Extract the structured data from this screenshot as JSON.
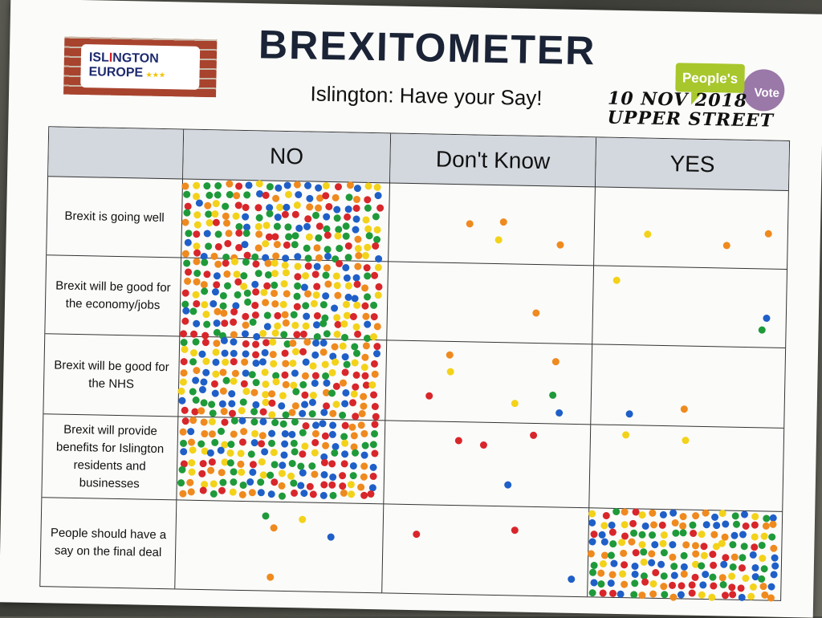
{
  "logo": {
    "line1_a": "ISL",
    "line1_b": "I",
    "line1_c": "NGTON",
    "line2": "EUROPE"
  },
  "title": "BREXITOMETER",
  "subtitle": "Islington: Have your Say!",
  "peoples_vote": {
    "word1": "People's",
    "word2": "Vote"
  },
  "handwriting": {
    "line1": "10 NOV 2018",
    "line2": "UPPER STREET"
  },
  "columns": [
    "NO",
    "Don't Know",
    "YES"
  ],
  "rows": [
    "Brexit is going well",
    "Brexit will be good for the economy/jobs",
    "Brexit will be good for the NHS",
    "Brexit will provide benefits for Islington residents and businesses",
    "People should have a say on the final deal"
  ],
  "dot_colors": [
    "#d8262b",
    "#ef8a1f",
    "#f3d21a",
    "#1f9a3a",
    "#1f5fc8"
  ],
  "dot_density": [
    [
      1.0,
      0.07,
      0.05
    ],
    [
      1.0,
      0.01,
      0.05
    ],
    [
      1.0,
      0.12,
      0.04
    ],
    [
      1.0,
      0.06,
      0.03
    ],
    [
      0.09,
      0.05,
      1.0
    ]
  ]
}
